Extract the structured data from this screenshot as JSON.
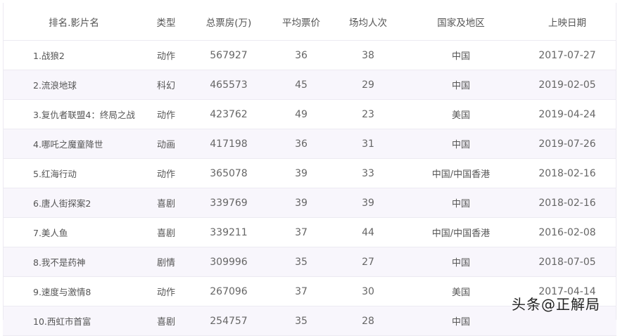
{
  "headers": [
    "排名.影片名",
    "类型",
    "总票房(万)",
    "平均票价",
    "场均人次",
    "国家及地区",
    "上映日期"
  ],
  "rows": [
    [
      "1.战狼2",
      "动作",
      "567927",
      "36",
      "38",
      "中国",
      "2017-07-27"
    ],
    [
      "2.流浪地球",
      "科幻",
      "465573",
      "45",
      "29",
      "中国",
      "2019-02-05"
    ],
    [
      "3.复仇者联盟4：终局之战",
      "动作",
      "423762",
      "49",
      "23",
      "美国",
      "2019-04-24"
    ],
    [
      "4.哪吒之魔童降世",
      "动画",
      "417198",
      "36",
      "31",
      "中国",
      "2019-07-26"
    ],
    [
      "5.红海行动",
      "动作",
      "365078",
      "39",
      "33",
      "中国/中国香港",
      "2018-02-16"
    ],
    [
      "6.唐人街探案2",
      "喜剧",
      "339769",
      "39",
      "39",
      "中国",
      "2018-02-16"
    ],
    [
      "7.美人鱼",
      "喜剧",
      "339211",
      "37",
      "44",
      "中国/中国香港",
      "2016-02-08"
    ],
    [
      "8.我不是药神",
      "剧情",
      "309996",
      "35",
      "27",
      "中国",
      "2018-07-05"
    ],
    [
      "9.速度与激情8",
      "动作",
      "267096",
      "37",
      "30",
      "美国",
      "2017-04-14"
    ],
    [
      "10.西虹市首富",
      "喜剧",
      "254757",
      "35",
      "28",
      "中国",
      ""
    ]
  ],
  "watermark": "头条@正解局"
}
